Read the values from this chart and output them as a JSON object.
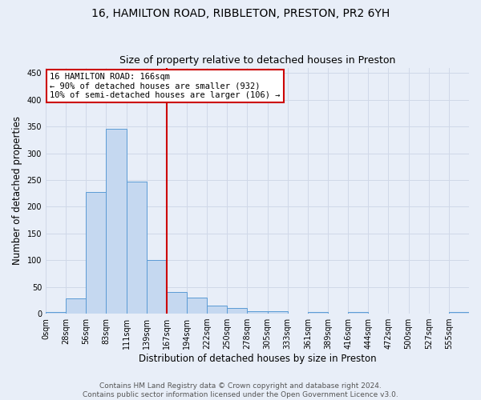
{
  "title": "16, HAMILTON ROAD, RIBBLETON, PRESTON, PR2 6YH",
  "subtitle": "Size of property relative to detached houses in Preston",
  "xlabel": "Distribution of detached houses by size in Preston",
  "ylabel": "Number of detached properties",
  "bar_color": "#c5d8f0",
  "bar_edge_color": "#5b9bd5",
  "bin_labels": [
    "0sqm",
    "28sqm",
    "56sqm",
    "83sqm",
    "111sqm",
    "139sqm",
    "167sqm",
    "194sqm",
    "222sqm",
    "250sqm",
    "278sqm",
    "305sqm",
    "333sqm",
    "361sqm",
    "389sqm",
    "416sqm",
    "444sqm",
    "472sqm",
    "500sqm",
    "527sqm",
    "555sqm"
  ],
  "bar_values": [
    3,
    28,
    228,
    345,
    247,
    101,
    41,
    30,
    15,
    10,
    5,
    4,
    0,
    3,
    0,
    3,
    0,
    0,
    0,
    0,
    3
  ],
  "property_line_bin_index": 6,
  "annotation_title": "16 HAMILTON ROAD: 166sqm",
  "annotation_line1": "← 90% of detached houses are smaller (932)",
  "annotation_line2": "10% of semi-detached houses are larger (106) →",
  "annotation_box_color": "#ffffff",
  "annotation_box_edge_color": "#cc0000",
  "vline_color": "#cc0000",
  "ylim": [
    0,
    460
  ],
  "yticks": [
    0,
    50,
    100,
    150,
    200,
    250,
    300,
    350,
    400,
    450
  ],
  "grid_color": "#d0d8e8",
  "background_color": "#e8eef8",
  "footer_line1": "Contains HM Land Registry data © Crown copyright and database right 2024.",
  "footer_line2": "Contains public sector information licensed under the Open Government Licence v3.0.",
  "title_fontsize": 10,
  "subtitle_fontsize": 9,
  "xlabel_fontsize": 8.5,
  "ylabel_fontsize": 8.5,
  "tick_fontsize": 7,
  "footer_fontsize": 6.5,
  "annotation_fontsize": 7.5
}
